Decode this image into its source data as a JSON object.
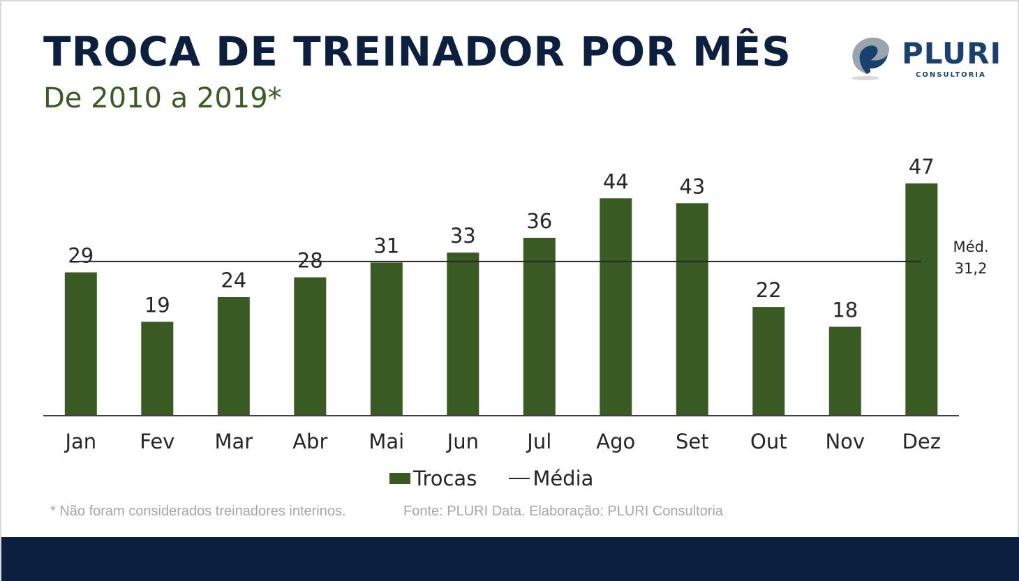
{
  "header": {
    "title": "TROCA DE TREINADOR POR MÊS",
    "subtitle": "De 2010 a 2019*"
  },
  "logo": {
    "name": "PLURI",
    "tagline": "CONSULTORIA",
    "icon": "pluri-swirl-icon"
  },
  "colors": {
    "bar": "#3a5a24",
    "title": "#0c1f3f",
    "subtitle": "#3a5a24",
    "footer_band": "#0c1f3f",
    "logo": "#18416e"
  },
  "chart_data": {
    "type": "bar",
    "categories": [
      "Jan",
      "Fev",
      "Mar",
      "Abr",
      "Mai",
      "Jun",
      "Jul",
      "Ago",
      "Set",
      "Out",
      "Nov",
      "Dez"
    ],
    "series": [
      {
        "name": "Trocas",
        "values": [
          29,
          19,
          24,
          28,
          31,
          33,
          36,
          44,
          43,
          22,
          18,
          47
        ],
        "labels": [
          "29",
          "19",
          "24",
          "28",
          "31",
          "33",
          "36",
          "44",
          "43",
          "22",
          "18",
          "47"
        ]
      }
    ],
    "mean": {
      "name": "Média",
      "value": 31.2,
      "label_line1": "Méd.",
      "label_line2": "31,2"
    },
    "title": "TROCA DE TREINADOR POR MÊS",
    "subtitle": "De 2010 a 2019*",
    "xlabel": "",
    "ylabel": "",
    "ylim": [
      0,
      47
    ],
    "grid": false,
    "legend": "bottom"
  },
  "legend": {
    "bars_label": "Trocas",
    "line_label": "Média"
  },
  "footer": {
    "footnote": "* Não foram considerados treinadores interinos.",
    "source": "Fonte: PLURI Data. Elaboração: PLURI Consultoria"
  }
}
